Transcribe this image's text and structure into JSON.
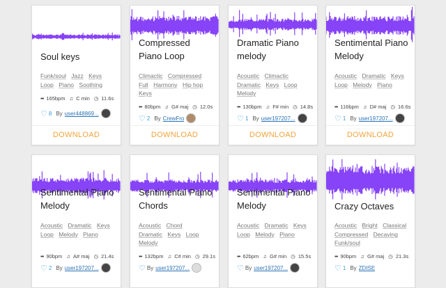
{
  "accent": "#7b2ff7",
  "download_color": "#f2a33a",
  "download_label": "DOWNLOAD",
  "cards": [
    {
      "title": "Soul keys",
      "tags": [
        "Funk/soul",
        "Jazz",
        "Keys",
        "Loop",
        "Piano",
        "Soothing"
      ],
      "bpm": "165bpm",
      "key": "C min",
      "duration": "11.6s",
      "likes": "8",
      "by": "By",
      "user": "user448869..."
    },
    {
      "title": "Compressed Piano Loop",
      "tags": [
        "Climactic",
        "Compressed",
        "Full",
        "Harmony",
        "Hip hop",
        "Keys"
      ],
      "bpm": "80bpm",
      "key": "G# maj",
      "duration": "12.0s",
      "likes": "2",
      "by": "By",
      "user": "CrewFro"
    },
    {
      "title": "Dramatic Piano melody",
      "tags": [
        "Acoustic",
        "Climactic",
        "Dramatic",
        "Keys",
        "Loop",
        "Melody"
      ],
      "bpm": "130bpm",
      "key": "F# min",
      "duration": "14.8s",
      "likes": "1",
      "by": "By",
      "user": "user197207..."
    },
    {
      "title": "Sentimental Piano Melody",
      "tags": [
        "Acoustic",
        "Dramatic",
        "Keys",
        "Loop",
        "Melody",
        "Piano"
      ],
      "bpm": "116bpm",
      "key": "D# maj",
      "duration": "16.6s",
      "likes": "1",
      "by": "By",
      "user": "user197207..."
    },
    {
      "title": "Sentimental Piano Melody",
      "tags": [
        "Acoustic",
        "Dramatic",
        "Keys",
        "Loop",
        "Melody",
        "Piano"
      ],
      "bpm": "90bpm",
      "key": "A# maj",
      "duration": "21.4s",
      "likes": "2",
      "by": "By",
      "user": "user197207..."
    },
    {
      "title": "Sentimental Piano Chords",
      "tags": [
        "Acoustic",
        "Chord",
        "Dramatic",
        "Keys",
        "Loop",
        "Melody"
      ],
      "bpm": "132bpm",
      "key": "C# min",
      "duration": "29.1s",
      "likes": "",
      "by": "By",
      "user": "user197207..."
    },
    {
      "title": "Sentimental Piano Melody",
      "tags": [
        "Acoustic",
        "Dramatic",
        "Keys",
        "Loop",
        "Melody",
        "Piano"
      ],
      "bpm": "62bpm",
      "key": "G# min",
      "duration": "15.5s",
      "likes": "",
      "by": "By",
      "user": "user197207..."
    },
    {
      "title": "Crazy Octaves",
      "tags": [
        "Acoustic",
        "Bright",
        "Classical",
        "Compressed",
        "Decaying",
        "Funk/soul"
      ],
      "bpm": "90bpm",
      "key": "G# maj",
      "duration": "21.3s",
      "likes": "1",
      "by": "By",
      "user": "ZDISE"
    }
  ]
}
